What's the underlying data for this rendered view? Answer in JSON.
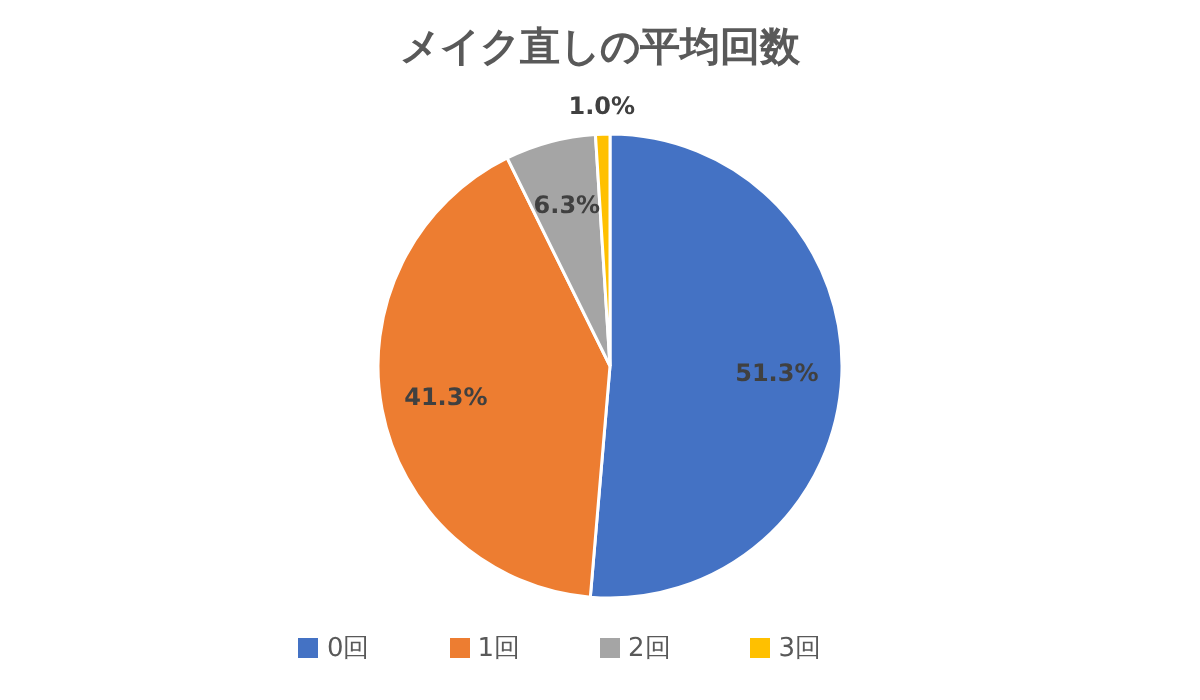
{
  "chart_data": {
    "type": "pie",
    "title": "メイク直しの平均回数",
    "categories": [
      "0回",
      "1回",
      "2回",
      "3回"
    ],
    "values": [
      51.3,
      41.3,
      6.3,
      1.0
    ],
    "colors": [
      "#4472c4",
      "#ed7d31",
      "#a5a5a5",
      "#ffc000"
    ],
    "value_labels": [
      "51.3%",
      "41.3%",
      "6.3%",
      "1.0%"
    ],
    "legend": "bottom"
  }
}
